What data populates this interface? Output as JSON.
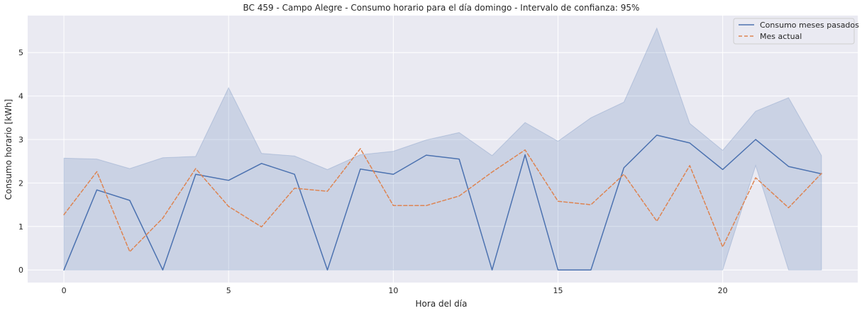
{
  "chart_data": {
    "type": "line",
    "title": "BC 459 - Campo Alegre - Consumo horario para el día domingo - Intervalo de confianza: 95%",
    "xlabel": "Hora del día",
    "ylabel": "Consumo horario [kWh]",
    "xlim": [
      -1.1,
      24.1
    ],
    "ylim": [
      -0.29,
      5.85
    ],
    "xticks": [
      0,
      5,
      10,
      15,
      20
    ],
    "yticks": [
      0,
      1,
      2,
      3,
      4,
      5
    ],
    "grid": true,
    "legend_position": "top-right",
    "x": [
      0,
      1,
      2,
      3,
      4,
      5,
      6,
      7,
      8,
      9,
      10,
      11,
      12,
      13,
      14,
      15,
      16,
      17,
      18,
      19,
      20,
      21,
      22,
      23
    ],
    "series": [
      {
        "name": "Consumo meses pasados",
        "style": "solid",
        "color": "#4c72b0",
        "values": [
          0,
          1.84,
          1.6,
          0,
          2.2,
          2.06,
          2.45,
          2.2,
          0,
          2.32,
          2.2,
          2.64,
          2.55,
          0,
          2.65,
          0,
          0,
          2.35,
          3.1,
          2.92,
          2.31,
          3.0,
          2.38,
          2.21
        ],
        "ci_upper": [
          2.57,
          2.55,
          2.33,
          2.58,
          2.61,
          4.19,
          2.68,
          2.62,
          2.31,
          2.65,
          2.73,
          2.99,
          3.16,
          2.63,
          3.39,
          2.96,
          3.5,
          3.86,
          5.56,
          3.37,
          2.75,
          3.65,
          3.96,
          2.63
        ],
        "ci_lower": [
          0,
          0,
          0,
          0,
          0,
          0,
          0,
          0,
          0,
          0,
          0,
          0,
          0,
          0,
          0,
          0,
          0,
          0,
          0,
          0,
          0,
          2.4,
          0,
          0
        ]
      },
      {
        "name": "Mes actual",
        "style": "dashed",
        "color": "#dd8452",
        "values": [
          1.27,
          2.26,
          0.42,
          1.19,
          2.33,
          1.46,
          0.99,
          1.88,
          1.81,
          2.79,
          1.48,
          1.48,
          1.7,
          2.25,
          2.76,
          1.58,
          1.5,
          2.2,
          1.12,
          2.4,
          0.53,
          2.12,
          1.43,
          2.22
        ]
      }
    ],
    "ci_fill_color": "#4c72b0",
    "background_color": "#eaeaf2",
    "grid_color": "#ffffff"
  }
}
